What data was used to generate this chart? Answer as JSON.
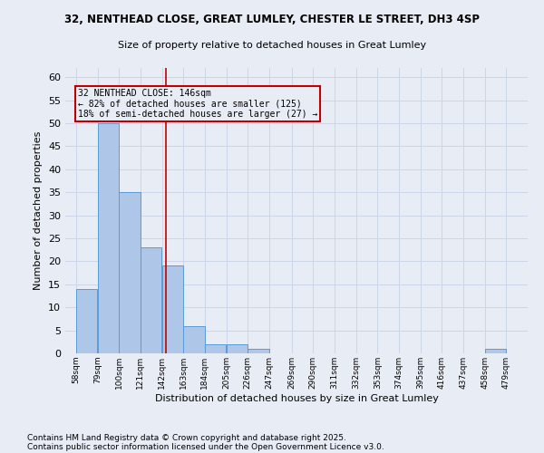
{
  "title1": "32, NENTHEAD CLOSE, GREAT LUMLEY, CHESTER LE STREET, DH3 4SP",
  "title2": "Size of property relative to detached houses in Great Lumley",
  "xlabel": "Distribution of detached houses by size in Great Lumley",
  "ylabel": "Number of detached properties",
  "bins_left": [
    58,
    79,
    100,
    121,
    142,
    163,
    184,
    205,
    226,
    247,
    269,
    290,
    311,
    332,
    353,
    374,
    395,
    416,
    437,
    458
  ],
  "bin_width": 21,
  "counts": [
    14,
    50,
    35,
    23,
    19,
    6,
    2,
    2,
    1,
    0,
    0,
    0,
    0,
    0,
    0,
    0,
    0,
    0,
    0,
    1
  ],
  "bin_labels": [
    "58sqm",
    "79sqm",
    "100sqm",
    "121sqm",
    "142sqm",
    "163sqm",
    "184sqm",
    "205sqm",
    "226sqm",
    "247sqm",
    "269sqm",
    "290sqm",
    "311sqm",
    "332sqm",
    "353sqm",
    "374sqm",
    "395sqm",
    "416sqm",
    "437sqm",
    "458sqm",
    "479sqm"
  ],
  "tick_positions": [
    58,
    79,
    100,
    121,
    142,
    163,
    184,
    205,
    226,
    247,
    269,
    290,
    311,
    332,
    353,
    374,
    395,
    416,
    437,
    458,
    479
  ],
  "bar_color": "#aec6e8",
  "bar_edge_color": "#5b9bd5",
  "vline_x": 146,
  "vline_color": "#c00000",
  "annotation_text": "32 NENTHEAD CLOSE: 146sqm\n← 82% of detached houses are smaller (125)\n18% of semi-detached houses are larger (27) →",
  "annotation_box_color": "#c00000",
  "ylim": [
    0,
    62
  ],
  "yticks": [
    0,
    5,
    10,
    15,
    20,
    25,
    30,
    35,
    40,
    45,
    50,
    55,
    60
  ],
  "xlim_left": 47.5,
  "xlim_right": 500,
  "grid_color": "#ccd6e8",
  "bg_color": "#e8edf5",
  "footer1": "Contains HM Land Registry data © Crown copyright and database right 2025.",
  "footer2": "Contains public sector information licensed under the Open Government Licence v3.0."
}
